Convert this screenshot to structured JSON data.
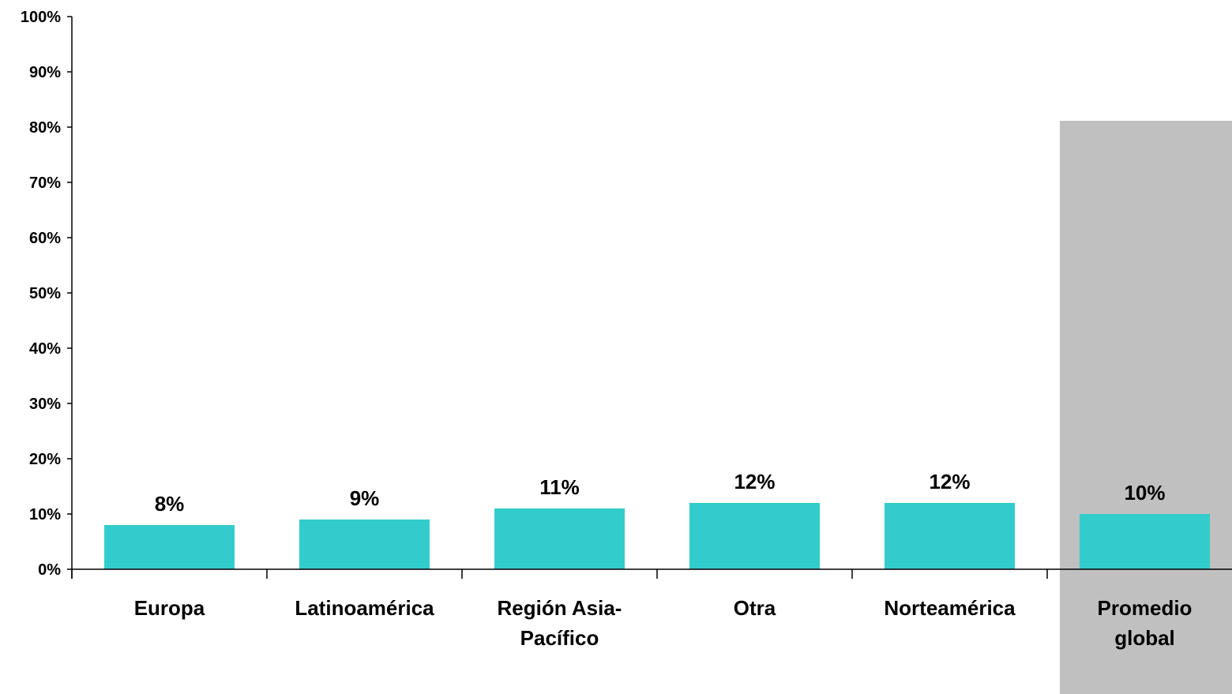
{
  "chart_data": {
    "type": "bar",
    "categories": [
      [
        "Europa"
      ],
      [
        "Latinoamérica"
      ],
      [
        "Región Asia-",
        "Pacífico"
      ],
      [
        "Otra"
      ],
      [
        "Norteamérica"
      ],
      [
        "Promedio",
        "global"
      ]
    ],
    "values": [
      8,
      9,
      11,
      12,
      12,
      10
    ],
    "value_labels": [
      "8%",
      "9%",
      "11%",
      "12%",
      "12%",
      "10%"
    ],
    "ylim": [
      0,
      100
    ],
    "yticks": [
      0,
      10,
      20,
      30,
      40,
      50,
      60,
      70,
      80,
      90,
      100
    ],
    "ytick_labels": [
      "0%",
      "10%",
      "20%",
      "30%",
      "40%",
      "50%",
      "60%",
      "70%",
      "80%",
      "90%",
      "100%"
    ],
    "highlighted_category_index": 5,
    "grid": false,
    "legend": false,
    "colors": {
      "bar": "#33CCCC",
      "highlight_band": "#C0C0C0",
      "axis": "#000000",
      "text": "#000000"
    }
  }
}
